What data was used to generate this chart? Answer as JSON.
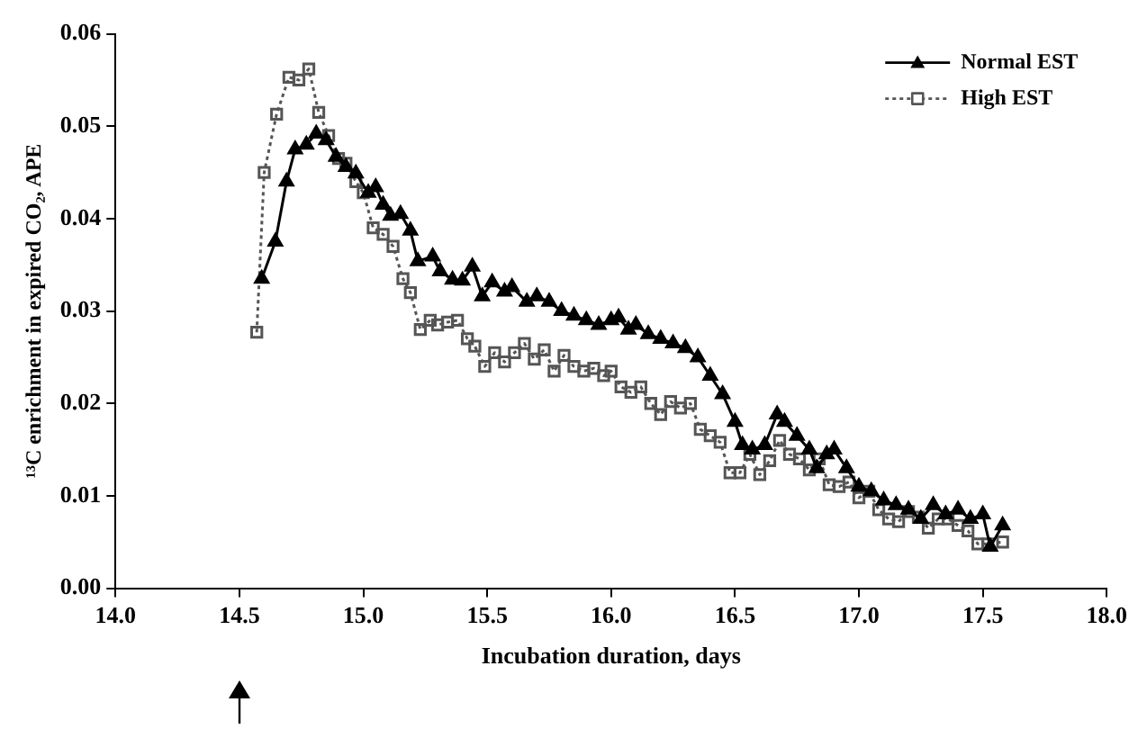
{
  "chart_data": {
    "type": "line",
    "xlabel": "Incubation duration, days",
    "ylabel": "¹³C enrichment in expired CO₂, APE",
    "xlim": [
      14,
      18
    ],
    "xticks": [
      {
        "value": 14,
        "label": "14.0"
      },
      {
        "value": 14.5,
        "label": "14.5"
      },
      {
        "value": 15,
        "label": "15.0"
      },
      {
        "value": 15.5,
        "label": "15.5"
      },
      {
        "value": 16,
        "label": "16.0"
      },
      {
        "value": 16.5,
        "label": "16.5"
      },
      {
        "value": 17,
        "label": "17.0"
      },
      {
        "value": 17.5,
        "label": "17.5"
      },
      {
        "value": 18,
        "label": "18.0"
      }
    ],
    "ylim": [
      0,
      0.06
    ],
    "yticks": [
      {
        "value": 0,
        "label": "0.00"
      },
      {
        "value": 0.01,
        "label": "0.01"
      },
      {
        "value": 0.02,
        "label": "0.02"
      },
      {
        "value": 0.03,
        "label": "0.03"
      },
      {
        "value": 0.04,
        "label": "0.04"
      },
      {
        "value": 0.05,
        "label": "0.05"
      },
      {
        "value": 0.06,
        "label": "0.06"
      }
    ],
    "grid": false,
    "legend": "top right",
    "series": [
      {
        "name": "Normal EST",
        "color": "#000000",
        "marker": "triangle",
        "line_style": "solid",
        "x": [
          14.59,
          14.645,
          14.69,
          14.725,
          14.77,
          14.81,
          14.85,
          14.89,
          14.93,
          14.97,
          15.02,
          15.05,
          15.08,
          15.11,
          15.15,
          15.19,
          15.22,
          15.28,
          15.31,
          15.36,
          15.4,
          15.44,
          15.48,
          15.52,
          15.57,
          15.6,
          15.66,
          15.7,
          15.75,
          15.8,
          15.85,
          15.9,
          15.95,
          16.0,
          16.03,
          16.07,
          16.1,
          16.15,
          16.2,
          16.25,
          16.3,
          16.35,
          16.4,
          16.45,
          16.5,
          16.53,
          16.57,
          16.62,
          16.67,
          16.7,
          16.75,
          16.8,
          16.83,
          16.87,
          16.9,
          16.95,
          17.0,
          17.05,
          17.1,
          17.15,
          17.2,
          17.25,
          17.3,
          17.35,
          17.4,
          17.45,
          17.5,
          17.53,
          17.58
        ],
        "values": [
          0.0335,
          0.0375,
          0.044,
          0.0475,
          0.048,
          0.0492,
          0.0485,
          0.0467,
          0.0456,
          0.0449,
          0.0428,
          0.0434,
          0.0415,
          0.0403,
          0.0405,
          0.0387,
          0.0354,
          0.0359,
          0.0343,
          0.0334,
          0.0333,
          0.0348,
          0.0316,
          0.0331,
          0.0321,
          0.0326,
          0.031,
          0.0316,
          0.031,
          0.03,
          0.0295,
          0.029,
          0.0285,
          0.029,
          0.0293,
          0.028,
          0.0285,
          0.0275,
          0.027,
          0.0265,
          0.026,
          0.025,
          0.023,
          0.021,
          0.018,
          0.0155,
          0.015,
          0.0155,
          0.0188,
          0.018,
          0.0165,
          0.015,
          0.013,
          0.0145,
          0.015,
          0.013,
          0.011,
          0.0105,
          0.0095,
          0.009,
          0.0085,
          0.0075,
          0.009,
          0.008,
          0.0085,
          0.0075,
          0.008,
          0.0045,
          0.0068
        ]
      },
      {
        "name": "High EST",
        "color": "#555555",
        "marker": "square",
        "line_style": "dotted",
        "x": [
          14.57,
          14.6,
          14.65,
          14.7,
          14.74,
          14.78,
          14.82,
          14.86,
          14.9,
          14.93,
          14.97,
          15.0,
          15.04,
          15.08,
          15.12,
          15.16,
          15.19,
          15.23,
          15.27,
          15.3,
          15.34,
          15.38,
          15.42,
          15.45,
          15.49,
          15.53,
          15.57,
          15.61,
          15.65,
          15.69,
          15.73,
          15.77,
          15.81,
          15.85,
          15.89,
          15.93,
          15.97,
          16.0,
          16.04,
          16.08,
          16.12,
          16.16,
          16.2,
          16.24,
          16.28,
          16.32,
          16.36,
          16.4,
          16.44,
          16.48,
          16.52,
          16.56,
          16.6,
          16.64,
          16.68,
          16.72,
          16.76,
          16.8,
          16.84,
          16.88,
          16.92,
          16.96,
          17.0,
          17.04,
          17.08,
          17.12,
          17.16,
          17.2,
          17.24,
          17.28,
          17.32,
          17.36,
          17.4,
          17.44,
          17.48,
          17.52,
          17.58
        ],
        "values": [
          0.0277,
          0.045,
          0.0513,
          0.0553,
          0.055,
          0.0562,
          0.0515,
          0.049,
          0.0465,
          0.046,
          0.044,
          0.0428,
          0.039,
          0.0383,
          0.037,
          0.0335,
          0.032,
          0.028,
          0.029,
          0.0285,
          0.0288,
          0.029,
          0.027,
          0.0262,
          0.024,
          0.0255,
          0.0245,
          0.0255,
          0.0265,
          0.0248,
          0.0258,
          0.0235,
          0.0252,
          0.024,
          0.0235,
          0.0238,
          0.023,
          0.0235,
          0.0218,
          0.0212,
          0.0218,
          0.02,
          0.0188,
          0.0202,
          0.0195,
          0.02,
          0.0172,
          0.0165,
          0.0158,
          0.0125,
          0.0125,
          0.0145,
          0.0123,
          0.0138,
          0.016,
          0.0145,
          0.014,
          0.0128,
          0.014,
          0.0112,
          0.011,
          0.0115,
          0.0098,
          0.0105,
          0.0085,
          0.0075,
          0.0072,
          0.0083,
          0.0077,
          0.0065,
          0.0075,
          0.0075,
          0.0068,
          0.0062,
          0.0048,
          0.0048,
          0.005
        ]
      }
    ]
  }
}
